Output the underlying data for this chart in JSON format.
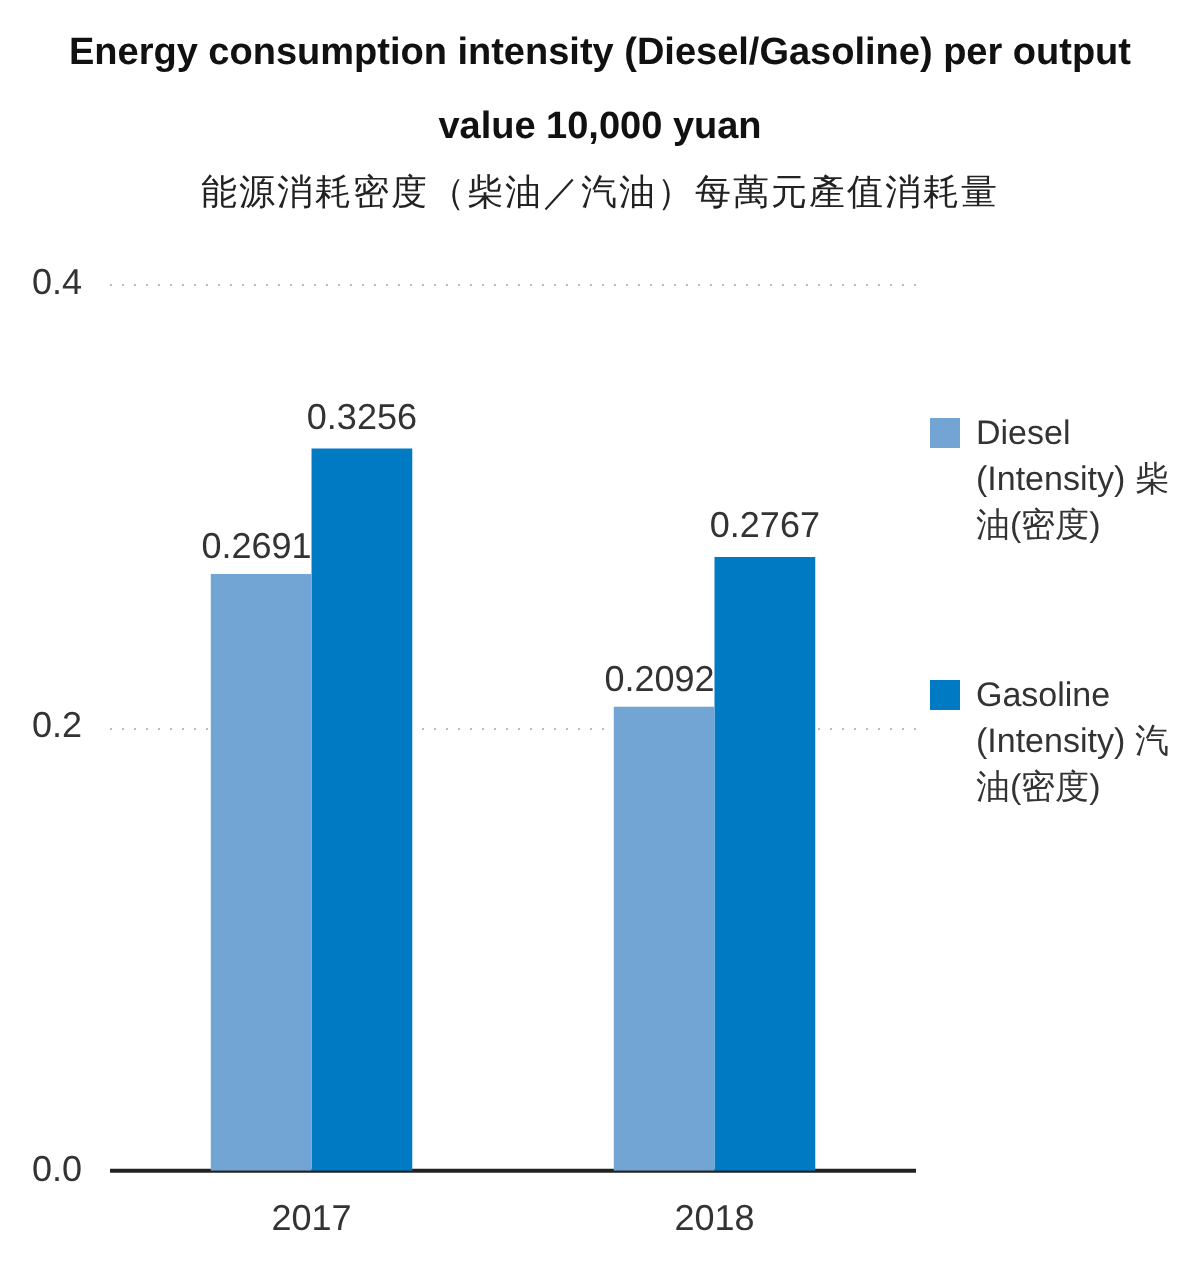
{
  "chart_data": {
    "type": "bar",
    "title": "Energy consumption intensity (Diesel/Gasoline) per output value 10,000 yuan",
    "subtitle": "能源消耗密度（柴油／汽油）每萬元產值消耗量",
    "categories": [
      "2017",
      "2018"
    ],
    "series": [
      {
        "name": "Diesel (Intensity) 柴油(密度)",
        "color": "#72a4d4",
        "values": [
          0.2691,
          0.2092
        ]
      },
      {
        "name": "Gasoline (Intensity) 汽油(密度)",
        "color": "#007ac3",
        "values": [
          0.3256,
          0.2767
        ]
      }
    ],
    "ylim": [
      0,
      0.4
    ],
    "yticks": [
      {
        "value": 0,
        "label": "0.0"
      },
      {
        "value": 0.2,
        "label": "0.2"
      },
      {
        "value": 0.4,
        "label": "0.4"
      }
    ],
    "grid": "y",
    "legend": "right",
    "data_labels": true
  }
}
